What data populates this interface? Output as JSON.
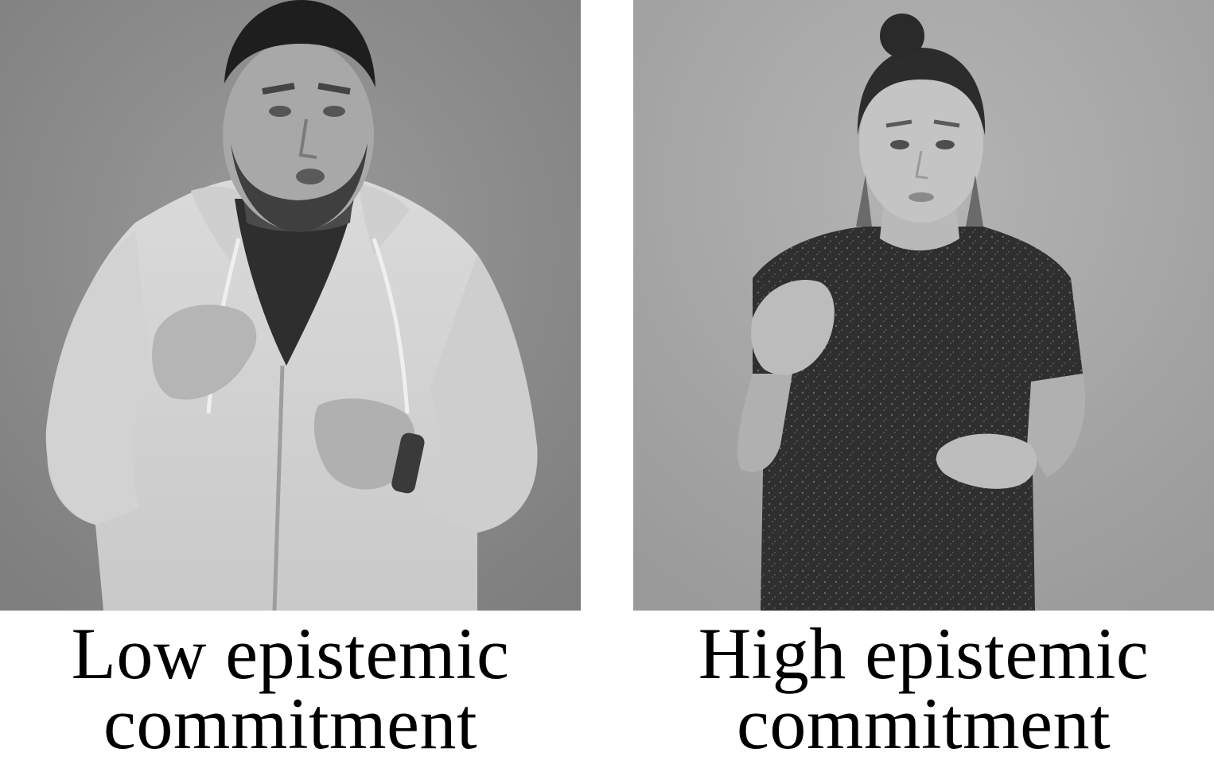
{
  "panels": [
    {
      "caption_line1": "Low epistemic",
      "caption_line2": "commitment"
    },
    {
      "caption_line1": "High epistemic",
      "caption_line2": "commitment"
    }
  ],
  "colors": {
    "background": "#ffffff",
    "caption_text": "#000000",
    "left_photo_backdrop": "#8c8c8c",
    "right_photo_backdrop": "#a7a7a7"
  }
}
